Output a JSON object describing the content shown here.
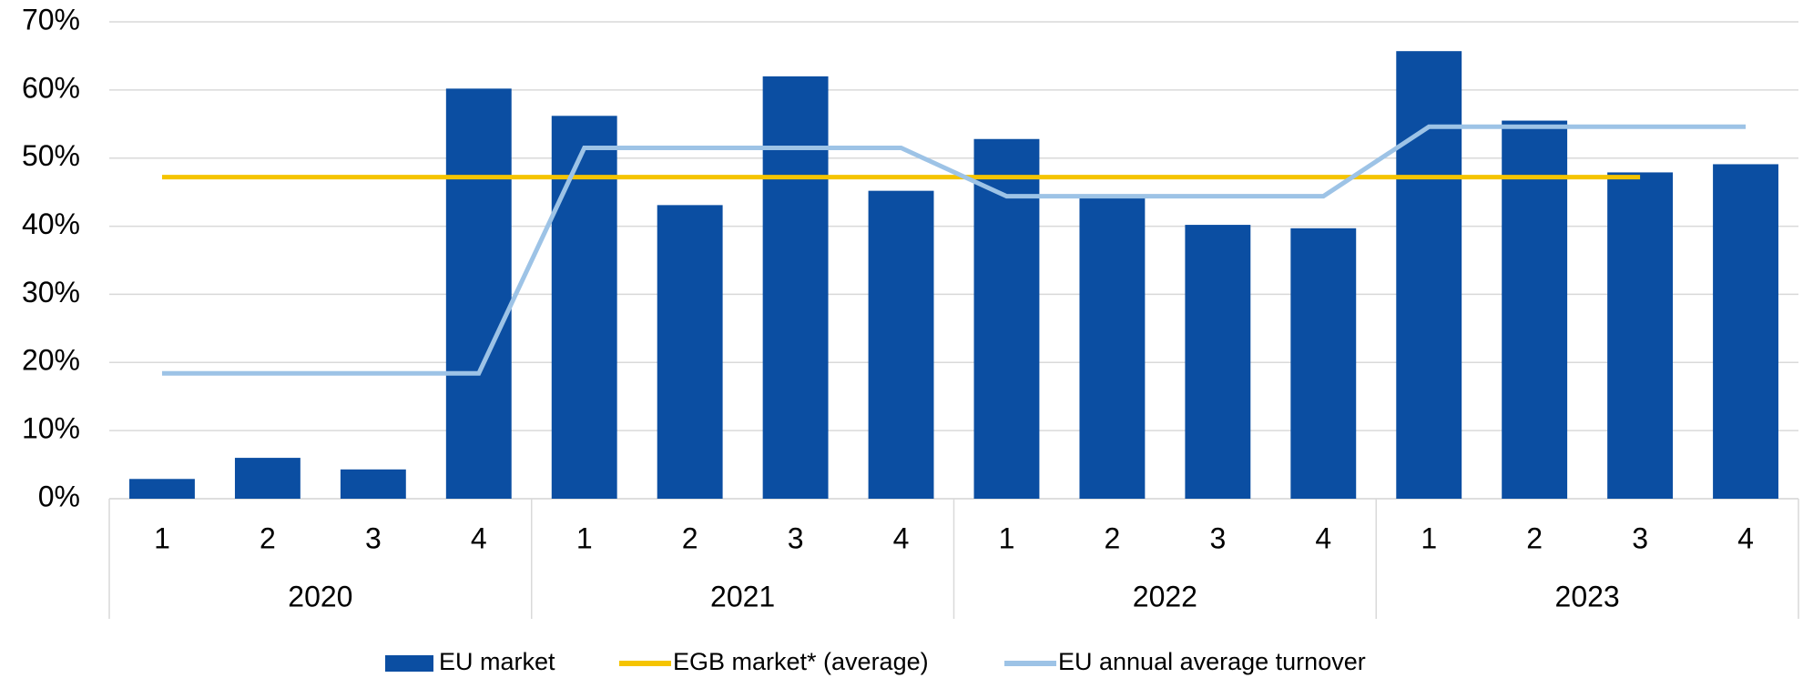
{
  "chart_data": {
    "type": "bar_line",
    "categories": [
      "1",
      "2",
      "3",
      "4",
      "1",
      "2",
      "3",
      "4",
      "1",
      "2",
      "3",
      "4",
      "1",
      "2",
      "3",
      "4"
    ],
    "groups": [
      "2020",
      "2021",
      "2022",
      "2023"
    ],
    "series": [
      {
        "name": "EU market",
        "type": "bar",
        "color": "#0b4ea2",
        "values": [
          2.9,
          6.0,
          4.3,
          60.2,
          56.2,
          43.1,
          62.0,
          45.2,
          52.8,
          44.5,
          40.2,
          39.7,
          65.7,
          55.5,
          47.9,
          49.1
        ]
      },
      {
        "name": "EGB market* (average)",
        "type": "line",
        "color": "#f5c400",
        "values": [
          47.2,
          47.2,
          47.2,
          47.2,
          47.2,
          47.2,
          47.2,
          47.2,
          47.2,
          47.2,
          47.2,
          47.2,
          47.2,
          47.2,
          47.2,
          null
        ]
      },
      {
        "name": "EU annual average turnover",
        "type": "line",
        "color": "#9dc3e6",
        "values": [
          18.4,
          18.4,
          18.4,
          18.4,
          51.5,
          51.5,
          51.5,
          51.5,
          44.4,
          44.4,
          44.4,
          44.4,
          54.6,
          54.6,
          54.6,
          54.6
        ]
      }
    ],
    "ylim": [
      0,
      70
    ],
    "yticks": [
      {
        "value": 0,
        "label": "0%"
      },
      {
        "value": 10,
        "label": "10%"
      },
      {
        "value": 20,
        "label": "20%"
      },
      {
        "value": 30,
        "label": "30%"
      },
      {
        "value": 40,
        "label": "40%"
      },
      {
        "value": 50,
        "label": "50%"
      },
      {
        "value": 60,
        "label": "60%"
      },
      {
        "value": 70,
        "label": "70%"
      }
    ],
    "grid": true,
    "legend": "bottom"
  }
}
